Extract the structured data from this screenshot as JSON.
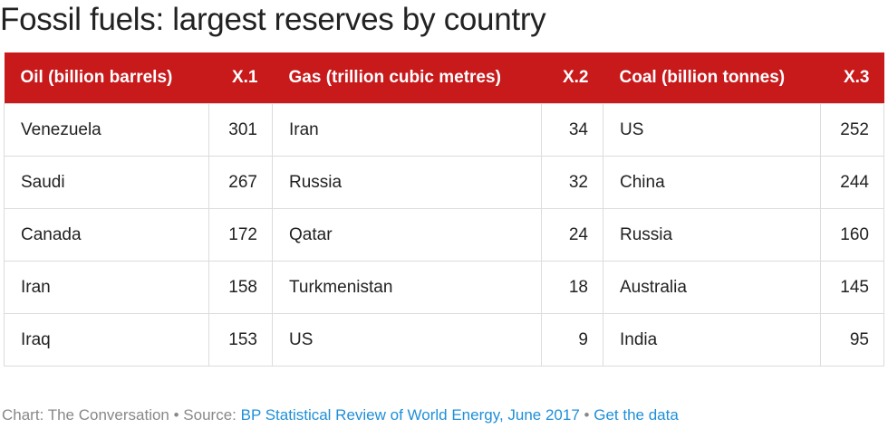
{
  "chart_data": {
    "type": "table",
    "title": "Fossil fuels: largest reserves by country",
    "columns": [
      "Oil (billion barrels)",
      "X.1",
      "Gas (trillion cubic metres)",
      "X.2",
      "Coal (billion tonnes)",
      "X.3"
    ],
    "rows": [
      [
        "Venezuela",
        "301",
        "Iran",
        "34",
        "US",
        "252"
      ],
      [
        "Saudi",
        "267",
        "Russia",
        "32",
        "China",
        "244"
      ],
      [
        "Canada",
        "172",
        "Qatar",
        "24",
        "Russia",
        "160"
      ],
      [
        "Iran",
        "158",
        "Turkmenistan",
        "18",
        "Australia",
        "145"
      ],
      [
        "Iraq",
        "153",
        "US",
        "9",
        "India",
        "95"
      ]
    ],
    "header_color": "#c8191b"
  },
  "footer": {
    "prefix": "Chart: The Conversation • Source: ",
    "source_link": "BP Statistical Review of World Energy, June 2017",
    "separator": " • ",
    "data_link": "Get the data"
  },
  "colors": {
    "link": "#1f8fd8",
    "muted": "#888888"
  }
}
